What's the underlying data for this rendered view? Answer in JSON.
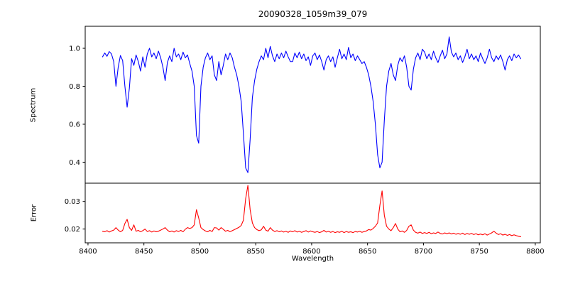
{
  "title": "20090328_1059m39_079",
  "chart_data": {
    "type": "line",
    "title": "20090328_1059m39_079",
    "xlabel": "Wavelength",
    "xlim": [
      8397.5,
      8804.5
    ],
    "x_ticks": [
      8400,
      8450,
      8500,
      8550,
      8600,
      8650,
      8700,
      8750,
      8800
    ],
    "grid": false,
    "legend": "none",
    "x_start": 8413,
    "x_step": 2,
    "panels": [
      {
        "name": "spectrum",
        "ylabel": "Spectrum",
        "color": "#0000ff",
        "ylim": [
          0.2895,
          1.116
        ],
        "y_ticks": [
          {
            "v": 0.4,
            "label": "0.4"
          },
          {
            "v": 0.6,
            "label": "0.6"
          },
          {
            "v": 0.8,
            "label": "0.8"
          },
          {
            "v": 1.0,
            "label": "1.0"
          }
        ],
        "notes": "Ca II triplet absorption lines at 8498, 8542, 8662 with depths 0.50, 0.345, 0.37; weaker lines at 8425, 8434, 8468, 8514, 8674, 8688",
        "values": [
          0.955,
          0.975,
          0.958,
          0.983,
          0.97,
          0.93,
          0.8,
          0.9,
          0.962,
          0.935,
          0.8,
          0.69,
          0.79,
          0.945,
          0.91,
          0.965,
          0.93,
          0.88,
          0.955,
          0.9,
          0.97,
          1.0,
          0.955,
          0.975,
          0.945,
          0.985,
          0.95,
          0.9,
          0.83,
          0.925,
          0.96,
          0.93,
          1.0,
          0.955,
          0.97,
          0.94,
          0.98,
          0.95,
          0.965,
          0.92,
          0.88,
          0.8,
          0.54,
          0.5,
          0.8,
          0.9,
          0.95,
          0.975,
          0.94,
          0.96,
          0.86,
          0.83,
          0.93,
          0.86,
          0.91,
          0.97,
          0.94,
          0.975,
          0.95,
          0.9,
          0.86,
          0.8,
          0.72,
          0.55,
          0.37,
          0.345,
          0.52,
          0.74,
          0.83,
          0.89,
          0.93,
          0.96,
          0.94,
          1.0,
          0.95,
          1.01,
          0.96,
          0.93,
          0.97,
          0.945,
          0.975,
          0.95,
          0.985,
          0.955,
          0.93,
          0.93,
          0.975,
          0.95,
          0.98,
          0.945,
          0.97,
          0.935,
          0.955,
          0.91,
          0.96,
          0.975,
          0.94,
          0.965,
          0.93,
          0.885,
          0.94,
          0.96,
          0.93,
          0.955,
          0.9,
          0.95,
          0.995,
          0.945,
          0.97,
          0.94,
          1.005,
          0.95,
          0.97,
          0.935,
          0.96,
          0.94,
          0.92,
          0.93,
          0.9,
          0.86,
          0.8,
          0.72,
          0.6,
          0.44,
          0.37,
          0.4,
          0.62,
          0.8,
          0.88,
          0.92,
          0.86,
          0.83,
          0.91,
          0.95,
          0.93,
          0.96,
          0.9,
          0.8,
          0.78,
          0.89,
          0.95,
          0.975,
          0.94,
          0.995,
          0.98,
          0.945,
          0.97,
          0.94,
          0.985,
          0.95,
          0.925,
          0.96,
          0.99,
          0.945,
          0.97,
          1.06,
          0.98,
          0.955,
          0.975,
          0.94,
          0.96,
          0.925,
          0.955,
          0.995,
          0.945,
          0.97,
          0.94,
          0.96,
          0.93,
          0.975,
          0.945,
          0.92,
          0.95,
          0.995,
          0.95,
          0.93,
          0.96,
          0.94,
          0.965,
          0.93,
          0.885,
          0.94,
          0.96,
          0.935,
          0.97,
          0.95,
          0.965,
          0.945
        ]
      },
      {
        "name": "error",
        "ylabel": "Error",
        "color": "#ff0000",
        "ylim": [
          0.015,
          0.0366
        ],
        "y_ticks": [
          {
            "v": 0.02,
            "label": "0.02"
          },
          {
            "v": 0.03,
            "label": "0.03"
          }
        ],
        "notes": "baseline ~0.019 declining to ~0.017; peaks at 8434 (0.0235), 8498 (0.027), 8542 (0.0358), 8662 (0.0338)",
        "values": [
          0.0192,
          0.019,
          0.0194,
          0.0189,
          0.0193,
          0.0196,
          0.0205,
          0.0196,
          0.019,
          0.0195,
          0.022,
          0.0235,
          0.0205,
          0.0195,
          0.0215,
          0.0192,
          0.0195,
          0.019,
          0.0194,
          0.02,
          0.0191,
          0.0194,
          0.0189,
          0.0193,
          0.019,
          0.0192,
          0.0196,
          0.02,
          0.0205,
          0.0196,
          0.019,
          0.0193,
          0.0189,
          0.0194,
          0.0191,
          0.0195,
          0.019,
          0.0199,
          0.0205,
          0.0202,
          0.0205,
          0.0215,
          0.027,
          0.024,
          0.0205,
          0.0198,
          0.0193,
          0.019,
          0.0195,
          0.0191,
          0.0205,
          0.0204,
          0.0196,
          0.0205,
          0.0199,
          0.0192,
          0.0195,
          0.019,
          0.0194,
          0.0198,
          0.0202,
          0.0206,
          0.0213,
          0.0232,
          0.031,
          0.0358,
          0.027,
          0.0222,
          0.0205,
          0.0198,
          0.0194,
          0.0197,
          0.021,
          0.0196,
          0.0192,
          0.0205,
          0.0196,
          0.0191,
          0.0194,
          0.019,
          0.0193,
          0.0189,
          0.0192,
          0.0188,
          0.0193,
          0.019,
          0.0194,
          0.0189,
          0.0192,
          0.0188,
          0.0191,
          0.0194,
          0.0189,
          0.0193,
          0.019,
          0.0188,
          0.0191,
          0.0187,
          0.019,
          0.0195,
          0.0189,
          0.0192,
          0.0188,
          0.0191,
          0.0187,
          0.019,
          0.0188,
          0.0192,
          0.0187,
          0.0191,
          0.0188,
          0.019,
          0.0187,
          0.0191,
          0.0189,
          0.0192,
          0.0188,
          0.0191,
          0.0193,
          0.0198,
          0.0196,
          0.0202,
          0.021,
          0.0222,
          0.0285,
          0.0338,
          0.025,
          0.021,
          0.02,
          0.0194,
          0.0205,
          0.022,
          0.02,
          0.019,
          0.0193,
          0.0188,
          0.0195,
          0.021,
          0.0215,
          0.0196,
          0.0188,
          0.0185,
          0.0189,
          0.0184,
          0.0187,
          0.0184,
          0.0188,
          0.0183,
          0.0186,
          0.0184,
          0.0189,
          0.0184,
          0.0182,
          0.0186,
          0.0183,
          0.0186,
          0.0182,
          0.0185,
          0.0181,
          0.0184,
          0.0181,
          0.0185,
          0.018,
          0.0184,
          0.0181,
          0.0184,
          0.018,
          0.0183,
          0.0179,
          0.0182,
          0.0179,
          0.0183,
          0.0178,
          0.0182,
          0.0186,
          0.0192,
          0.0185,
          0.018,
          0.0183,
          0.0178,
          0.0181,
          0.0177,
          0.018,
          0.0176,
          0.0179,
          0.0176,
          0.0174,
          0.0172
        ]
      }
    ]
  }
}
